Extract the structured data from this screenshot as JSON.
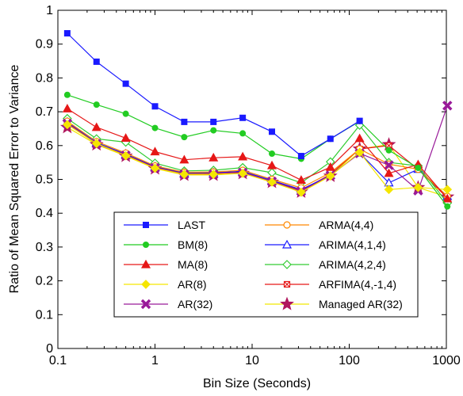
{
  "chart_data": {
    "type": "line",
    "title": "",
    "xlabel": "Bin Size (Seconds)",
    "ylabel": "Ratio of Mean Squared Error to Variance",
    "x_scale": "log",
    "xlim": [
      0.1,
      1000
    ],
    "ylim": [
      0,
      1
    ],
    "x_ticks": [
      {
        "value": 0.1,
        "label": "0.1"
      },
      {
        "value": 1,
        "label": "1"
      },
      {
        "value": 10,
        "label": "10"
      },
      {
        "value": 100,
        "label": "100"
      },
      {
        "value": 1000,
        "label": "1000"
      }
    ],
    "y_ticks": [
      {
        "value": 0,
        "label": "0"
      },
      {
        "value": 0.1,
        "label": "0.1"
      },
      {
        "value": 0.2,
        "label": "0.2"
      },
      {
        "value": 0.3,
        "label": "0.3"
      },
      {
        "value": 0.4,
        "label": "0.4"
      },
      {
        "value": 0.5,
        "label": "0.5"
      },
      {
        "value": 0.6,
        "label": "0.6"
      },
      {
        "value": 0.7,
        "label": "0.7"
      },
      {
        "value": 0.8,
        "label": "0.8"
      },
      {
        "value": 0.9,
        "label": "0.9"
      },
      {
        "value": 1,
        "label": "1"
      }
    ],
    "grid": false,
    "legend_position": "bottom-center",
    "x": [
      0.125,
      0.25,
      0.5,
      1,
      2,
      4,
      8,
      16,
      32,
      64,
      128,
      256,
      512,
      1024
    ],
    "series": [
      {
        "name": "LAST",
        "color": "#1a1aff",
        "marker": "square-filled",
        "values": [
          0.932,
          0.848,
          0.783,
          0.716,
          0.67,
          0.67,
          0.682,
          0.641,
          0.569,
          0.62,
          0.673,
          null,
          null,
          null
        ]
      },
      {
        "name": "BM(8)",
        "color": "#22cc22",
        "marker": "circle-filled",
        "values": [
          0.75,
          0.721,
          0.694,
          0.652,
          0.625,
          0.645,
          0.636,
          0.576,
          0.561,
          0.62,
          0.672,
          0.586,
          0.534,
          0.42
        ]
      },
      {
        "name": "MA(8)",
        "color": "#e61717",
        "marker": "triangle-filled",
        "values": [
          0.709,
          0.654,
          0.622,
          0.582,
          0.558,
          0.564,
          0.567,
          0.541,
          0.498,
          0.536,
          0.621,
          0.518,
          0.544,
          0.443
        ]
      },
      {
        "name": "AR(8)",
        "color": "#f5e600",
        "marker": "diamond-filled",
        "values": [
          0.662,
          0.606,
          0.57,
          0.533,
          0.515,
          0.515,
          0.518,
          0.492,
          0.462,
          0.51,
          0.58,
          0.47,
          0.476,
          0.47
        ]
      },
      {
        "name": "AR(32)",
        "color": "#991a99",
        "marker": "x-bold",
        "values": [
          0.665,
          0.605,
          0.571,
          0.534,
          0.515,
          0.515,
          0.52,
          0.494,
          0.465,
          0.512,
          0.577,
          0.542,
          0.467,
          0.718
        ]
      },
      {
        "name": "ARMA(4,4)",
        "color": "#ff8800",
        "marker": "circle-open",
        "values": [
          0.672,
          0.612,
          0.578,
          0.54,
          0.521,
          0.522,
          0.527,
          0.5,
          0.475,
          0.52,
          0.59,
          0.545,
          0.53,
          0.45
        ]
      },
      {
        "name": "ARIMA(4,1,4)",
        "color": "#1a1aff",
        "marker": "triangle-open",
        "values": [
          0.67,
          0.609,
          0.575,
          0.538,
          0.519,
          0.52,
          0.524,
          0.497,
          0.47,
          0.512,
          0.578,
          0.49,
          0.53,
          0.45
        ]
      },
      {
        "name": "ARIMA(4,2,4)",
        "color": "#33cc33",
        "marker": "diamond-open",
        "values": [
          0.68,
          0.62,
          0.61,
          0.548,
          0.525,
          0.527,
          0.535,
          0.52,
          0.49,
          0.552,
          0.66,
          0.55,
          0.54,
          0.43
        ]
      },
      {
        "name": "ARFIMA(4,-1,4)",
        "color": "#e61717",
        "marker": "x-box",
        "values": [
          0.668,
          0.607,
          0.573,
          0.536,
          0.517,
          0.518,
          0.522,
          0.496,
          0.467,
          0.515,
          0.59,
          0.6,
          0.53,
          0.445
        ]
      },
      {
        "name": "Managed AR(32)",
        "color": "#f2e600",
        "marker": "star-filled",
        "values": [
          0.654,
          0.603,
          0.569,
          0.532,
          0.513,
          0.513,
          0.518,
          0.492,
          0.463,
          0.51,
          0.59,
          0.603,
          0.476,
          0.448
        ]
      }
    ],
    "star_marker_color": "#b0175e"
  }
}
